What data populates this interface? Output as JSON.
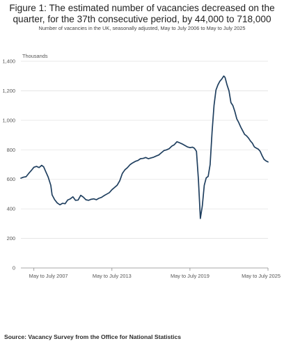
{
  "figure": {
    "title": "Figure 1: The estimated number of vacancies decreased on the quarter, for the 37th consecutive period, by 44,000 to 718,000",
    "subtitle": "Number of vacancies in the UK, seasonally adjusted, May to July 2006 to May to July 2025",
    "source": "Source: Vacancy Survey from the Office for National Statistics"
  },
  "colors": {
    "line": "#1f3f5f",
    "grid": "#e3e3e3",
    "axis": "#8a8a8a",
    "text": "#555555"
  },
  "chart_data": {
    "type": "line",
    "unit_label": "Thousands",
    "ylim": [
      0,
      1400
    ],
    "y_ticks": [
      "0",
      "200",
      "400",
      "600",
      "800",
      "1,000",
      "1,200",
      "1,400"
    ],
    "x_tick_labels": [
      {
        "label": "May to July 2007",
        "year": 2007.5
      },
      {
        "label": "May to July 2013",
        "year": 2013.5
      },
      {
        "label": "May to July 2019",
        "year": 2019.5
      },
      {
        "label": "May to July 2025",
        "year": 2025.5
      }
    ],
    "xlim": [
      2006.5,
      2025.5
    ],
    "grid": true,
    "legend": "none",
    "series": [
      {
        "points": [
          [
            2006.5,
            608
          ],
          [
            2006.7,
            615
          ],
          [
            2006.9,
            618
          ],
          [
            2007.1,
            640
          ],
          [
            2007.3,
            660
          ],
          [
            2007.5,
            682
          ],
          [
            2007.7,
            688
          ],
          [
            2007.9,
            680
          ],
          [
            2008.1,
            695
          ],
          [
            2008.25,
            685
          ],
          [
            2008.4,
            655
          ],
          [
            2008.6,
            615
          ],
          [
            2008.8,
            560
          ],
          [
            2008.9,
            495
          ],
          [
            2009.1,
            462
          ],
          [
            2009.3,
            440
          ],
          [
            2009.5,
            428
          ],
          [
            2009.7,
            438
          ],
          [
            2009.9,
            435
          ],
          [
            2010.1,
            460
          ],
          [
            2010.3,
            468
          ],
          [
            2010.5,
            482
          ],
          [
            2010.7,
            458
          ],
          [
            2010.9,
            460
          ],
          [
            2011.1,
            492
          ],
          [
            2011.3,
            480
          ],
          [
            2011.5,
            462
          ],
          [
            2011.7,
            458
          ],
          [
            2011.9,
            465
          ],
          [
            2012.1,
            468
          ],
          [
            2012.3,
            462
          ],
          [
            2012.5,
            472
          ],
          [
            2012.7,
            478
          ],
          [
            2012.9,
            490
          ],
          [
            2013.1,
            500
          ],
          [
            2013.3,
            510
          ],
          [
            2013.5,
            530
          ],
          [
            2013.7,
            545
          ],
          [
            2013.9,
            560
          ],
          [
            2014.1,
            590
          ],
          [
            2014.3,
            640
          ],
          [
            2014.5,
            665
          ],
          [
            2014.7,
            680
          ],
          [
            2014.9,
            700
          ],
          [
            2015.1,
            712
          ],
          [
            2015.3,
            722
          ],
          [
            2015.5,
            728
          ],
          [
            2015.7,
            740
          ],
          [
            2015.9,
            742
          ],
          [
            2016.1,
            748
          ],
          [
            2016.3,
            740
          ],
          [
            2016.5,
            745
          ],
          [
            2016.7,
            750
          ],
          [
            2016.9,
            758
          ],
          [
            2017.1,
            765
          ],
          [
            2017.3,
            780
          ],
          [
            2017.5,
            795
          ],
          [
            2017.7,
            800
          ],
          [
            2017.9,
            808
          ],
          [
            2018.1,
            825
          ],
          [
            2018.3,
            835
          ],
          [
            2018.5,
            855
          ],
          [
            2018.7,
            848
          ],
          [
            2018.9,
            840
          ],
          [
            2019.1,
            830
          ],
          [
            2019.3,
            820
          ],
          [
            2019.5,
            815
          ],
          [
            2019.7,
            818
          ],
          [
            2019.85,
            810
          ],
          [
            2020.0,
            790
          ],
          [
            2020.15,
            600
          ],
          [
            2020.3,
            335
          ],
          [
            2020.45,
            420
          ],
          [
            2020.6,
            560
          ],
          [
            2020.75,
            610
          ],
          [
            2020.9,
            620
          ],
          [
            2021.05,
            700
          ],
          [
            2021.2,
            920
          ],
          [
            2021.35,
            1100
          ],
          [
            2021.5,
            1205
          ],
          [
            2021.65,
            1240
          ],
          [
            2021.8,
            1265
          ],
          [
            2021.95,
            1280
          ],
          [
            2022.1,
            1300
          ],
          [
            2022.2,
            1290
          ],
          [
            2022.35,
            1240
          ],
          [
            2022.5,
            1200
          ],
          [
            2022.65,
            1120
          ],
          [
            2022.8,
            1100
          ],
          [
            2022.95,
            1060
          ],
          [
            2023.1,
            1010
          ],
          [
            2023.25,
            985
          ],
          [
            2023.4,
            955
          ],
          [
            2023.55,
            930
          ],
          [
            2023.7,
            905
          ],
          [
            2023.85,
            895
          ],
          [
            2024.0,
            880
          ],
          [
            2024.15,
            860
          ],
          [
            2024.3,
            845
          ],
          [
            2024.45,
            820
          ],
          [
            2024.6,
            812
          ],
          [
            2024.75,
            805
          ],
          [
            2024.9,
            790
          ],
          [
            2025.05,
            760
          ],
          [
            2025.2,
            735
          ],
          [
            2025.35,
            725
          ],
          [
            2025.5,
            718
          ]
        ]
      }
    ]
  }
}
